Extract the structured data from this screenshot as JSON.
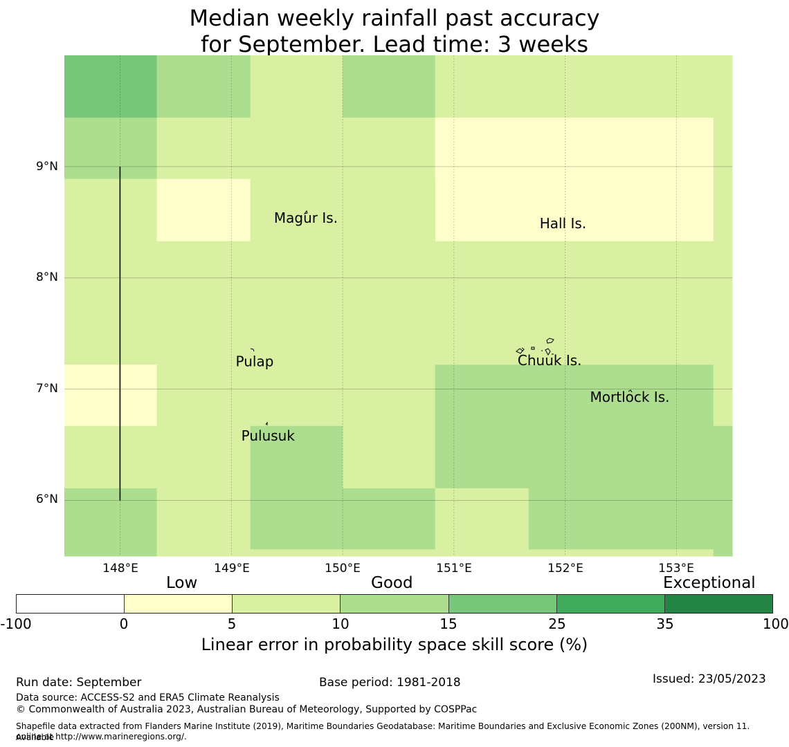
{
  "title": {
    "line1": "Median weekly rainfall past accuracy",
    "line2": "for September. Lead time: 3 weeks"
  },
  "map": {
    "lat_labels": [
      "9°N",
      "8°N",
      "7°N",
      "6°N"
    ],
    "lon_labels": [
      "148°E",
      "149°E",
      "150°E",
      "151°E",
      "152°E",
      "153°E"
    ],
    "places": [
      {
        "name": "Magur Is.",
        "lon": 149.67,
        "lat": 8.54
      },
      {
        "name": "Hall Is.",
        "lon": 151.98,
        "lat": 8.49
      },
      {
        "name": "Pulap",
        "lon": 149.21,
        "lat": 7.25
      },
      {
        "name": "Chuuk Is.",
        "lon": 151.86,
        "lat": 7.26
      },
      {
        "name": "Mortlock Is.",
        "lon": 152.58,
        "lat": 6.93
      },
      {
        "name": "Pulusuk",
        "lon": 149.33,
        "lat": 6.58
      }
    ],
    "colors": {
      "c0": "#ffffcc",
      "c5": "#d9f0a3",
      "c10": "#addd8e",
      "c15": "#78c679",
      "c25": "#41ab5d",
      "c35": "#238443",
      "cneg": "#ffffff"
    },
    "cells": [
      {
        "lon0": 147.5,
        "lon1": 148.33,
        "lat0": 9.44,
        "lat1": 10.0,
        "cat": "c15"
      },
      {
        "lon0": 148.33,
        "lon1": 149.17,
        "lat0": 9.44,
        "lat1": 10.0,
        "cat": "c10"
      },
      {
        "lon0": 149.17,
        "lon1": 150.0,
        "lat0": 9.44,
        "lat1": 10.0,
        "cat": "c5"
      },
      {
        "lon0": 150.0,
        "lon1": 150.83,
        "lat0": 9.44,
        "lat1": 10.0,
        "cat": "c10"
      },
      {
        "lon0": 150.83,
        "lon1": 153.5,
        "lat0": 9.44,
        "lat1": 10.0,
        "cat": "c5"
      },
      {
        "lon0": 147.5,
        "lon1": 148.33,
        "lat0": 8.89,
        "lat1": 9.44,
        "cat": "c10"
      },
      {
        "lon0": 148.33,
        "lon1": 150.83,
        "lat0": 8.89,
        "lat1": 9.44,
        "cat": "c5"
      },
      {
        "lon0": 150.83,
        "lon1": 153.33,
        "lat0": 8.33,
        "lat1": 9.44,
        "cat": "c0"
      },
      {
        "lon0": 153.33,
        "lon1": 153.5,
        "lat0": 8.33,
        "lat1": 9.44,
        "cat": "c5"
      },
      {
        "lon0": 147.5,
        "lon1": 148.33,
        "lat0": 7.22,
        "lat1": 8.89,
        "cat": "c5"
      },
      {
        "lon0": 148.33,
        "lon1": 149.17,
        "lat0": 8.33,
        "lat1": 8.89,
        "cat": "c0"
      },
      {
        "lon0": 149.17,
        "lon1": 150.83,
        "lat0": 8.33,
        "lat1": 8.89,
        "cat": "c5"
      },
      {
        "lon0": 148.33,
        "lon1": 153.5,
        "lat0": 7.22,
        "lat1": 8.33,
        "cat": "c5"
      },
      {
        "lon0": 147.5,
        "lon1": 148.33,
        "lat0": 6.67,
        "lat1": 7.22,
        "cat": "c0"
      },
      {
        "lon0": 148.33,
        "lon1": 150.83,
        "lat0": 6.67,
        "lat1": 7.22,
        "cat": "c5"
      },
      {
        "lon0": 150.83,
        "lon1": 153.33,
        "lat0": 6.67,
        "lat1": 7.22,
        "cat": "c10"
      },
      {
        "lon0": 153.33,
        "lon1": 153.5,
        "lat0": 6.67,
        "lat1": 7.22,
        "cat": "c5"
      },
      {
        "lon0": 147.5,
        "lon1": 149.17,
        "lat0": 6.11,
        "lat1": 6.67,
        "cat": "c5"
      },
      {
        "lon0": 149.17,
        "lon1": 150.0,
        "lat0": 6.11,
        "lat1": 6.67,
        "cat": "c10"
      },
      {
        "lon0": 150.0,
        "lon1": 150.83,
        "lat0": 6.11,
        "lat1": 6.67,
        "cat": "c5"
      },
      {
        "lon0": 150.83,
        "lon1": 153.5,
        "lat0": 6.11,
        "lat1": 6.67,
        "cat": "c10"
      },
      {
        "lon0": 147.5,
        "lon1": 148.33,
        "lat0": 5.5,
        "lat1": 6.11,
        "cat": "c10"
      },
      {
        "lon0": 148.33,
        "lon1": 149.17,
        "lat0": 5.5,
        "lat1": 6.11,
        "cat": "c5"
      },
      {
        "lon0": 149.17,
        "lon1": 150.83,
        "lat0": 5.56,
        "lat1": 6.11,
        "cat": "c10"
      },
      {
        "lon0": 149.17,
        "lon1": 150.83,
        "lat0": 5.5,
        "lat1": 5.56,
        "cat": "c5"
      },
      {
        "lon0": 150.83,
        "lon1": 151.67,
        "lat0": 5.5,
        "lat1": 6.11,
        "cat": "c5"
      },
      {
        "lon0": 151.67,
        "lon1": 153.33,
        "lat0": 5.56,
        "lat1": 6.11,
        "cat": "c10"
      },
      {
        "lon0": 151.67,
        "lon1": 153.33,
        "lat0": 5.5,
        "lat1": 5.56,
        "cat": "c5"
      },
      {
        "lon0": 153.33,
        "lon1": 153.5,
        "lat0": 5.5,
        "lat1": 6.11,
        "cat": "c10"
      }
    ],
    "eez_line": {
      "lon": 148.0,
      "lat_top": 9.0,
      "lat_bottom": 6.0
    }
  },
  "legend": {
    "categories": [
      "Low",
      "Good",
      "Exceptional"
    ],
    "ticks": [
      "-100",
      "0",
      "5",
      "10",
      "15",
      "25",
      "35",
      "100"
    ],
    "caption": "Linear error in probability space skill score (%)"
  },
  "footer": {
    "run_date": "Run date: September",
    "base_period": "Base period: 1981-2018",
    "issued": "Issued: 23/05/2023",
    "data_source": "Data source: ACCESS-S2 and ERA5 Climate Reanalysis",
    "copyright": "© Commonwealth of Australia 2023, Australian Bureau of Meteorology, Supported by COSPPac",
    "shapefile_line1": "Shapefile data extracted from Flanders Marine Institute (2019), Maritime Boundaries Geodatabase: Maritime Boundaries and Exclusive Economic Zones (200NM), version 11. Available",
    "shapefile_line2": "online at http://www.marineregions.org/."
  }
}
